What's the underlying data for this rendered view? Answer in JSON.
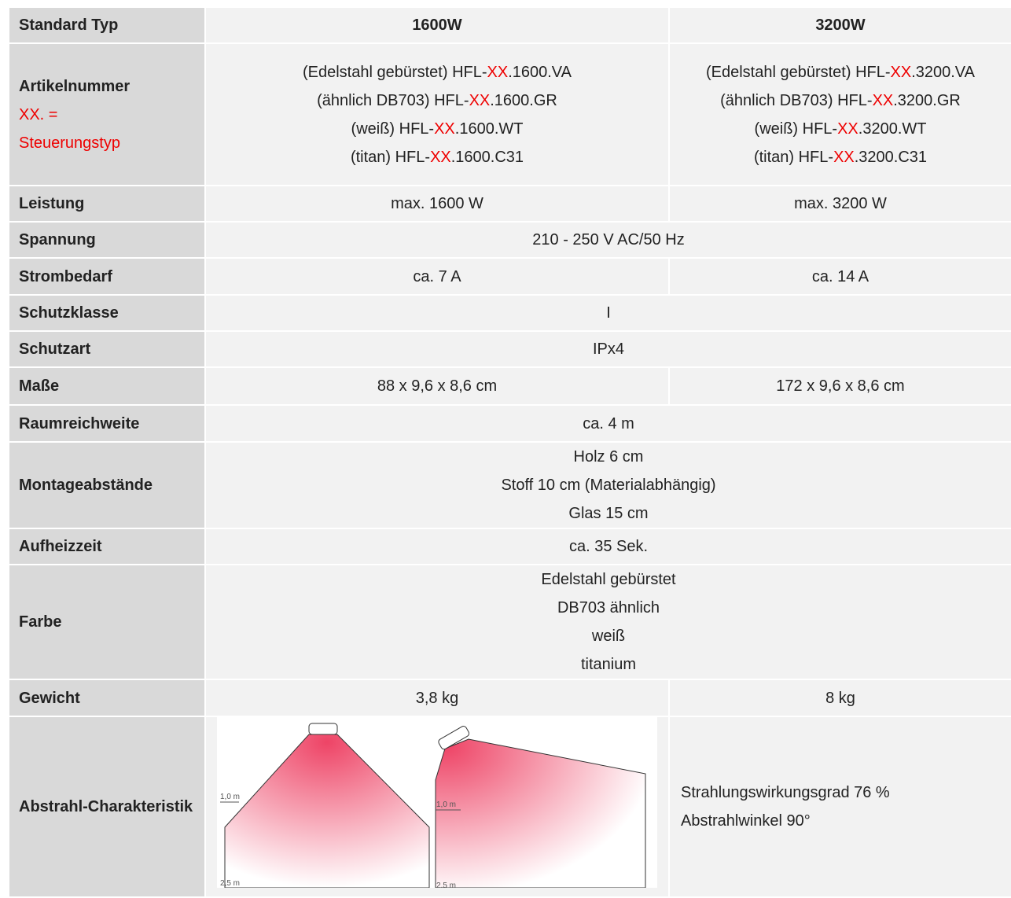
{
  "table": {
    "header": [
      "Standard Typ",
      "1600W",
      "3200W"
    ],
    "rows": [
      {
        "label": "Artikelnummer",
        "note": [
          "XX. =",
          "Steuerungstyp"
        ],
        "cells": [
          [
            [
              "(Edelstahl gebürstet) HFL-",
              "XX",
              ".1600.VA"
            ],
            [
              "(ähnlich DB703) HFL-",
              "XX",
              ".1600.GR"
            ],
            [
              "(weiß) HFL-",
              "XX",
              ".1600.WT"
            ],
            [
              "(titan) HFL-",
              "XX",
              ".1600.C31"
            ]
          ],
          [
            [
              "(Edelstahl gebürstet) HFL-",
              "XX",
              ".3200.VA"
            ],
            [
              "(ähnlich DB703) HFL-",
              "XX",
              ".3200.GR"
            ],
            [
              "(weiß) HFL-",
              "XX",
              ".3200.WT"
            ],
            [
              "(titan) HFL-",
              "XX",
              ".3200.C31"
            ]
          ]
        ]
      },
      {
        "label": "Leistung",
        "cells": [
          [
            "max. 1600 W"
          ],
          [
            "max. 3200 W"
          ]
        ]
      },
      {
        "label": "Spannung",
        "cells": [
          [
            "210 - 250 V AC/50 Hz"
          ]
        ]
      },
      {
        "label": "Strombedarf",
        "cells": [
          [
            "ca. 7 A"
          ],
          [
            "ca. 14 A"
          ]
        ]
      },
      {
        "label": "Schutzklasse",
        "cells": [
          [
            "I"
          ]
        ]
      },
      {
        "label": "Schutzart",
        "cells": [
          [
            "IPx4"
          ]
        ]
      },
      {
        "label": "Maße",
        "cells": [
          [
            "88 x 9,6 x 8,6 cm"
          ],
          [
            "172 x 9,6 x 8,6 cm"
          ]
        ]
      },
      {
        "label": "Raumreichweite",
        "cells": [
          [
            "ca. 4 m"
          ]
        ]
      },
      {
        "label": "Montageabstände",
        "cells": [
          [
            "Holz 6 cm",
            "Stoff 10 cm (Materialabhängig)",
            "Glas 15 cm"
          ]
        ]
      },
      {
        "label": "Aufheizzeit",
        "cells": [
          [
            "ca. 35 Sek."
          ]
        ]
      },
      {
        "label": "Farbe",
        "cells": [
          [
            "Edelstahl gebürstet",
            "DB703 ähnlich",
            "weiß",
            "titanium"
          ]
        ]
      },
      {
        "label": "Gewicht",
        "cells": [
          [
            "3,8 kg"
          ],
          [
            "8 kg"
          ]
        ]
      },
      {
        "label": "Abstrahl-Charakteristik",
        "diagram": {
          "labels": [
            "1,0 m",
            "2,5 m",
            "1,0 m",
            "2,5 m"
          ]
        },
        "cells": [
          [
            "Strahlungswirkungsgrad 76 %",
            "Abstrahlwinkel 90°"
          ]
        ]
      }
    ]
  }
}
